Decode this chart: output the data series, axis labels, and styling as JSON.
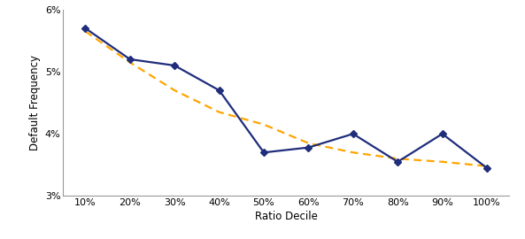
{
  "x_labels": [
    "10%",
    "20%",
    "30%",
    "40%",
    "50%",
    "60%",
    "70%",
    "80%",
    "90%",
    "100%"
  ],
  "x_values": [
    1,
    2,
    3,
    4,
    5,
    6,
    7,
    8,
    9,
    10
  ],
  "blue_values": [
    0.057,
    0.052,
    0.051,
    0.047,
    0.037,
    0.0378,
    0.04,
    0.0355,
    0.04,
    0.0345
  ],
  "orange_values": [
    0.0565,
    0.0515,
    0.047,
    0.0435,
    0.0415,
    0.0385,
    0.037,
    0.036,
    0.0355,
    0.0348
  ],
  "ylim": [
    0.03,
    0.06
  ],
  "yticks": [
    0.03,
    0.04,
    0.05,
    0.06
  ],
  "xlabel": "Ratio Decile",
  "ylabel": "Default Frequency",
  "blue_color": "#1F2D7B",
  "orange_color": "#FFA500",
  "line_width": 1.6,
  "marker": "D",
  "marker_size": 4.5,
  "figsize": [
    5.93,
    2.7
  ],
  "dpi": 100,
  "spine_color": "#999999"
}
